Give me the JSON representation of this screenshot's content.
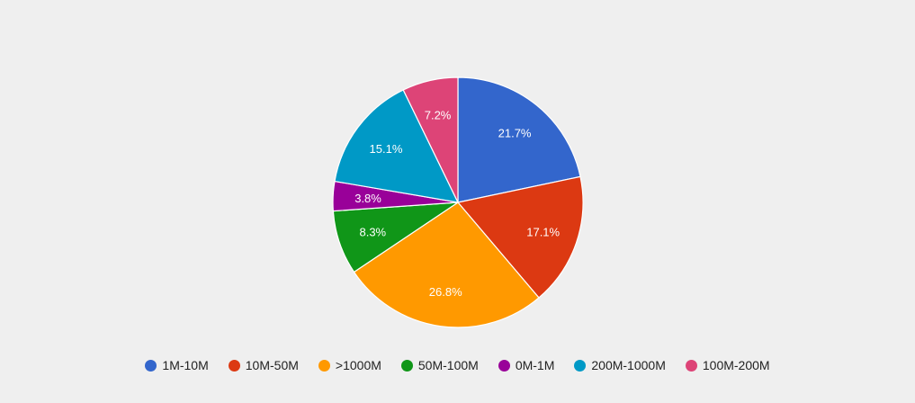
{
  "chart_data": {
    "type": "pie",
    "title": "",
    "legend_position": "bottom",
    "slices": [
      {
        "label": "1M-10M",
        "value": 21.7,
        "display": "21.7%",
        "color": "#3366cc"
      },
      {
        "label": "10M-50M",
        "value": 17.1,
        "display": "17.1%",
        "color": "#dc3912"
      },
      {
        "label": ">1000M",
        "value": 26.8,
        "display": "26.8%",
        "color": "#ff9900"
      },
      {
        "label": "50M-100M",
        "value": 8.3,
        "display": "8.3%",
        "color": "#109618"
      },
      {
        "label": "0M-1M",
        "value": 3.8,
        "display": "3.8%",
        "color": "#990099"
      },
      {
        "label": "200M-1000M",
        "value": 15.1,
        "display": "15.1%",
        "color": "#0099c6"
      },
      {
        "label": "100M-200M",
        "value": 7.2,
        "display": "7.2%",
        "color": "#dd4477"
      }
    ]
  }
}
